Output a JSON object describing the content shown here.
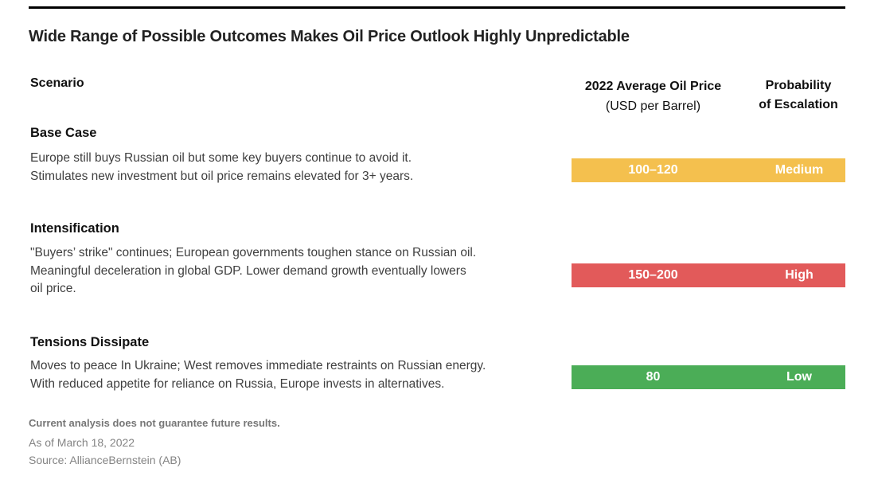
{
  "page": {
    "title": "Wide Range of Possible Outcomes Makes Oil Price Outlook Highly Unpredictable"
  },
  "table": {
    "headers": {
      "scenario": "Scenario",
      "price_line1": "2022 Average Oil Price",
      "price_line2": "(USD per Barrel)",
      "probability_line1": "Probability",
      "probability_line2": "of Escalation"
    },
    "rows": [
      {
        "name": "Base Case",
        "description": "Europe still buys Russian oil but some key buyers continue to avoid it.\nStimulates new investment but oil price remains elevated for 3+ years.",
        "price": "100–120",
        "probability": "Medium",
        "color": "#F4C04E"
      },
      {
        "name": "Intensification",
        "description": "\"Buyers’ strike\" continues;  European governments toughen stance on Russian oil.\nMeaningful deceleration in global GDP. Lower demand growth eventually lowers\noil price.",
        "price": "150–200",
        "probability": "High",
        "color": "#E25A5A"
      },
      {
        "name": "Tensions Dissipate",
        "description": "Moves to peace In Ukraine; West removes immediate restraints on Russian energy.\nWith reduced appetite for reliance on Russia, Europe invests in alternatives.",
        "price": "80",
        "probability": "Low",
        "color": "#4BAD57"
      }
    ]
  },
  "footer": {
    "disclaimer": "Current analysis does not guarantee future results.",
    "as_of": "As of March 18, 2022",
    "source": "Source: AllianceBernstein (AB)"
  },
  "chart_data": {
    "type": "table",
    "title": "Wide Range of Possible Outcomes Makes Oil Price Outlook Highly Unpredictable",
    "columns": [
      "Scenario",
      "2022 Average Oil Price (USD per Barrel)",
      "Probability of Escalation"
    ],
    "rows": [
      [
        "Base Case",
        "100–120",
        "Medium"
      ],
      [
        "Intensification",
        "150–200",
        "High"
      ],
      [
        "Tensions Dissipate",
        "80",
        "Low"
      ]
    ],
    "bar_colors": {
      "Medium": "#F4C04E",
      "High": "#E25A5A",
      "Low": "#4BAD57"
    },
    "legend_position": "none",
    "grid": false
  }
}
